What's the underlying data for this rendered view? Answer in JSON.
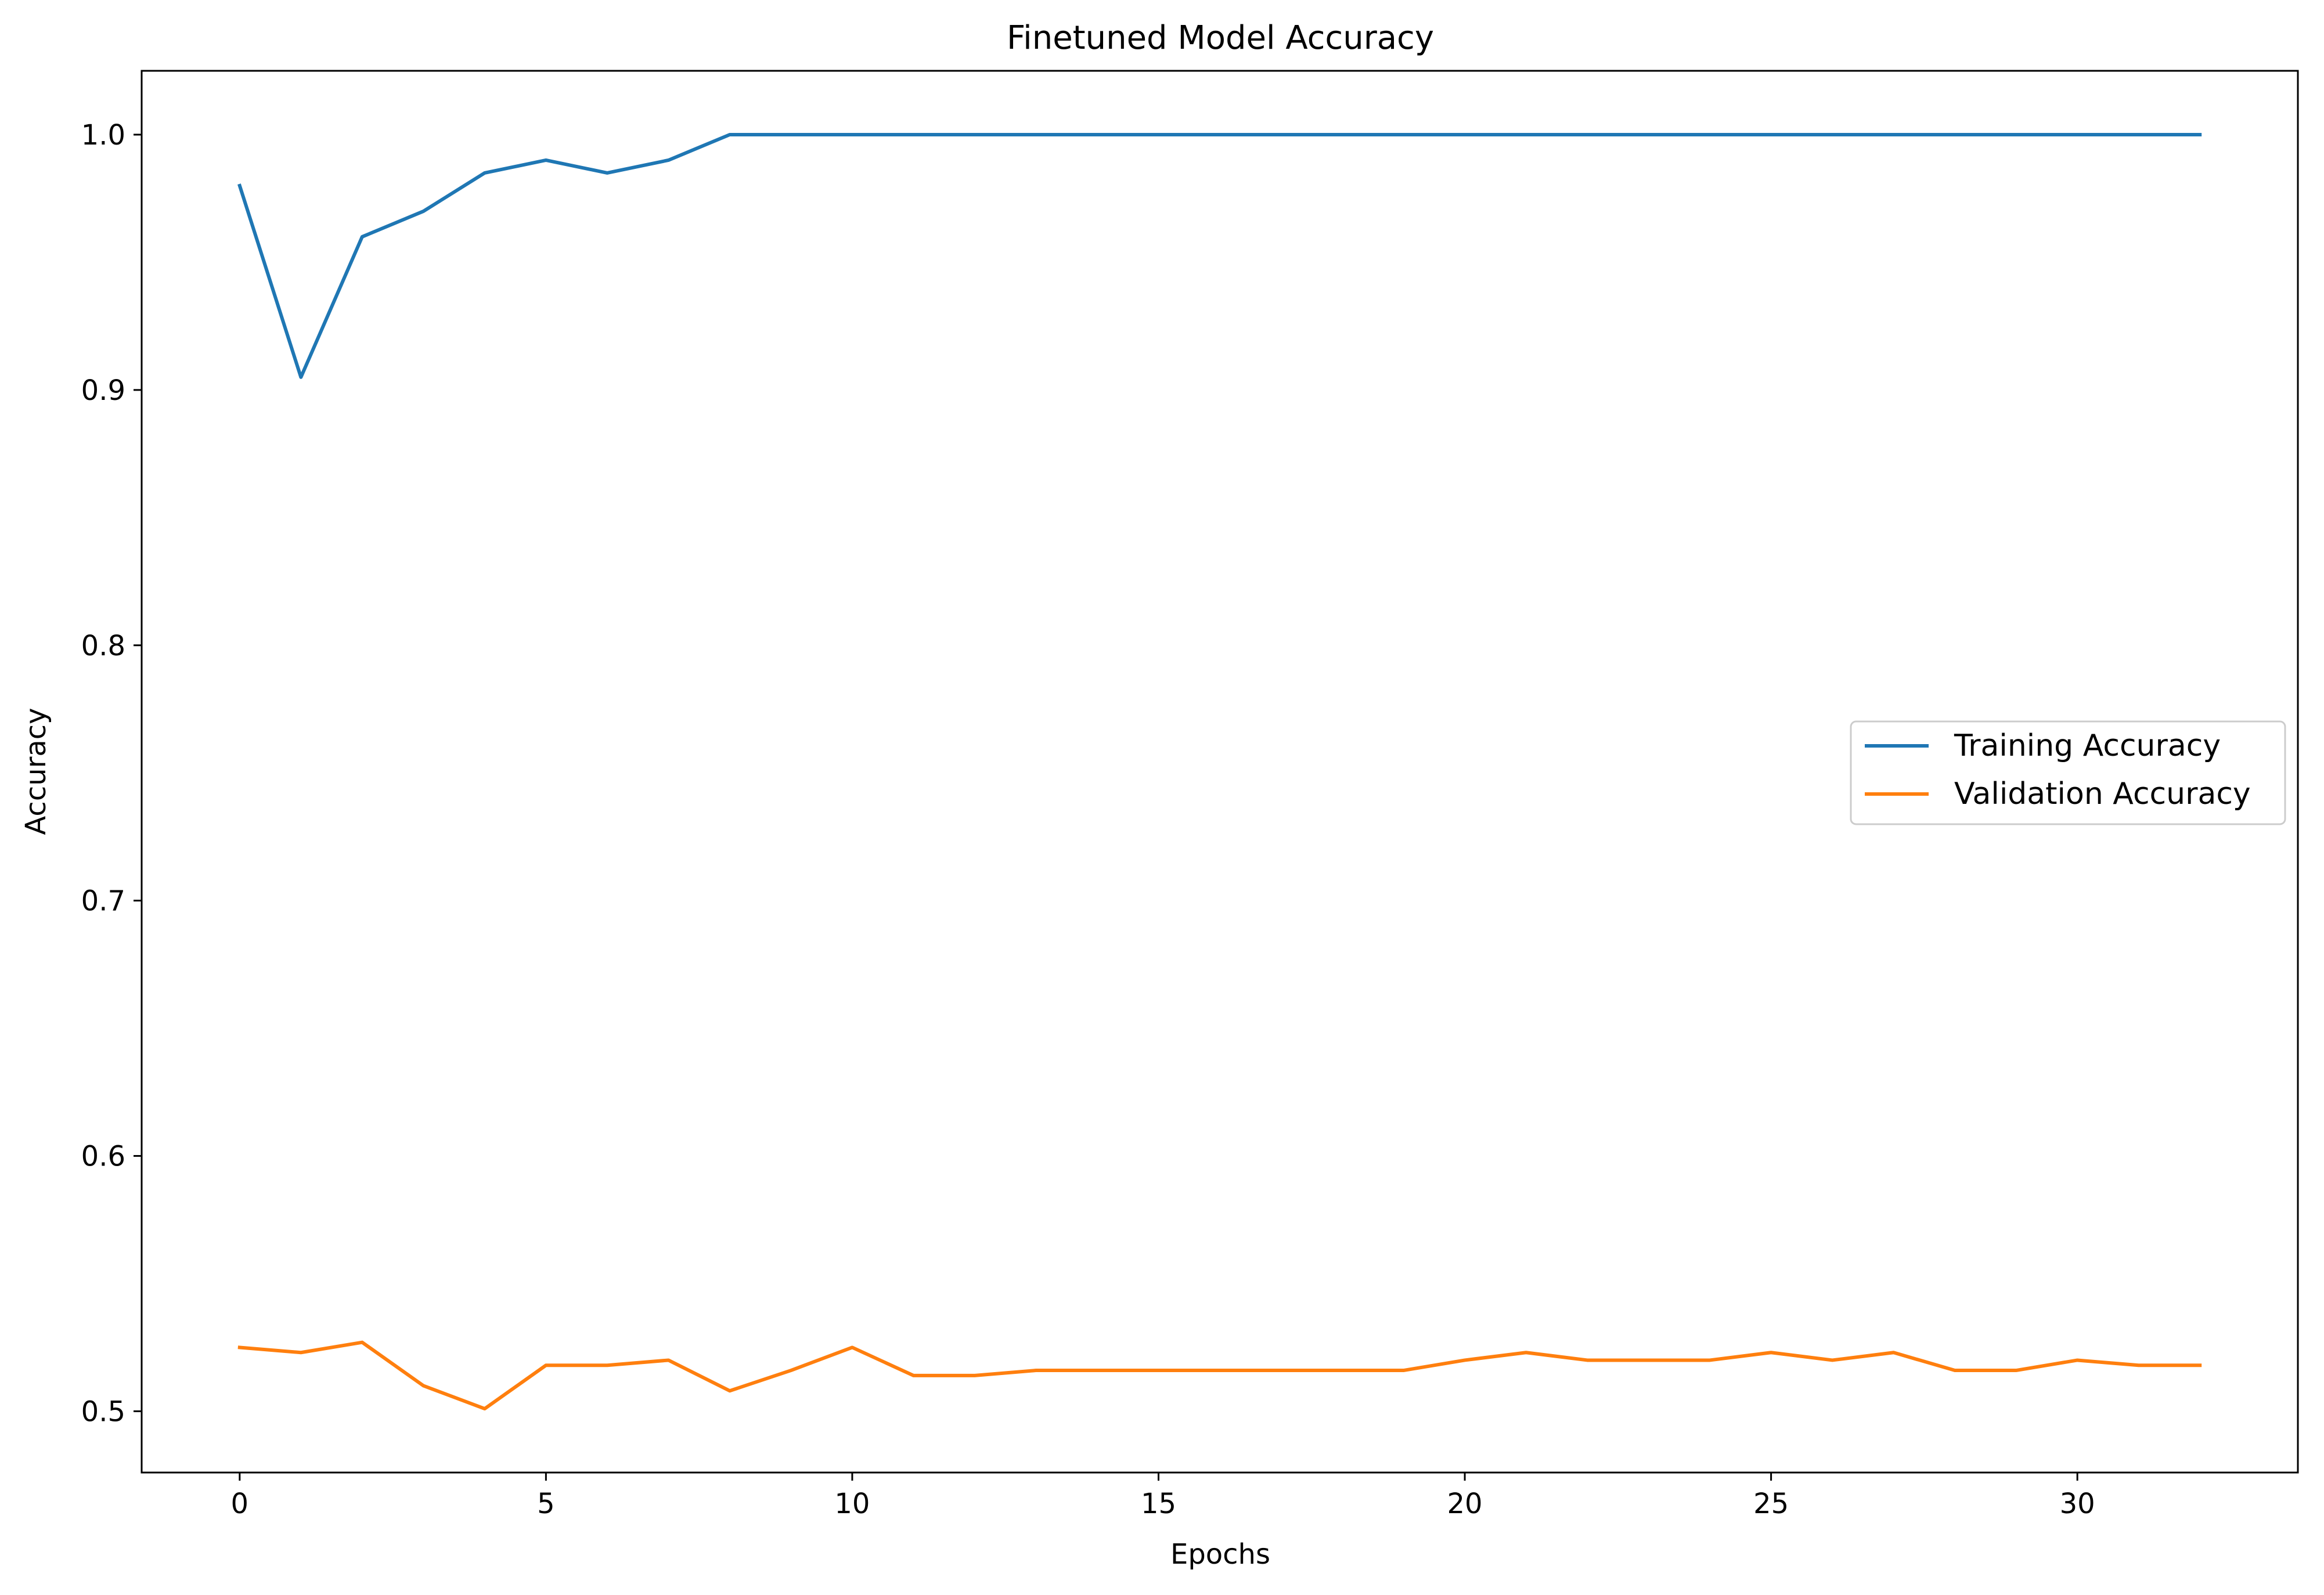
{
  "chart_data": {
    "type": "line",
    "title": "Finetuned Model Accuracy",
    "xlabel": "Epochs",
    "ylabel": "Accuracy",
    "xlim": [
      -1.6,
      33.6
    ],
    "ylim": [
      0.476,
      1.025
    ],
    "xticks": [
      0,
      5,
      10,
      15,
      20,
      25,
      30
    ],
    "xtick_labels": [
      "0",
      "5",
      "10",
      "15",
      "20",
      "25",
      "30"
    ],
    "yticks": [
      0.5,
      0.6,
      0.7,
      0.8,
      0.9,
      1.0
    ],
    "ytick_labels": [
      "0.5",
      "0.6",
      "0.7",
      "0.8",
      "0.9",
      "1.0"
    ],
    "grid": false,
    "legend_position": "center-right",
    "x": [
      0,
      1,
      2,
      3,
      4,
      5,
      6,
      7,
      8,
      9,
      10,
      11,
      12,
      13,
      14,
      15,
      16,
      17,
      18,
      19,
      20,
      21,
      22,
      23,
      24,
      25,
      26,
      27,
      28,
      29,
      30,
      31,
      32
    ],
    "series": [
      {
        "name": "Training Accuracy",
        "color": "#1f77b4",
        "values": [
          0.98,
          0.905,
          0.96,
          0.97,
          0.985,
          0.99,
          0.985,
          0.99,
          1.0,
          1.0,
          1.0,
          1.0,
          1.0,
          1.0,
          1.0,
          1.0,
          1.0,
          1.0,
          1.0,
          1.0,
          1.0,
          1.0,
          1.0,
          1.0,
          1.0,
          1.0,
          1.0,
          1.0,
          1.0,
          1.0,
          1.0,
          1.0,
          1.0
        ]
      },
      {
        "name": "Validation Accuracy",
        "color": "#ff7f0e",
        "values": [
          0.525,
          0.523,
          0.527,
          0.51,
          0.501,
          0.518,
          0.518,
          0.52,
          0.508,
          0.516,
          0.525,
          0.514,
          0.514,
          0.516,
          0.516,
          0.516,
          0.516,
          0.516,
          0.516,
          0.516,
          0.52,
          0.523,
          0.52,
          0.52,
          0.52,
          0.523,
          0.52,
          0.523,
          0.516,
          0.516,
          0.52,
          0.518,
          0.518
        ]
      }
    ]
  }
}
